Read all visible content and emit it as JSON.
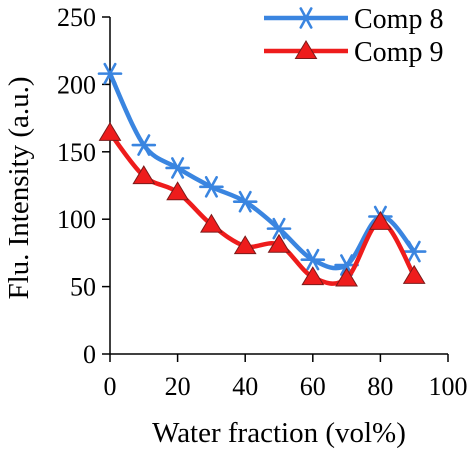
{
  "chart_data": {
    "type": "line",
    "title": "",
    "xlabel": "Water fraction (vol%)",
    "ylabel": "Flu. Intensity (a.u.)",
    "xlim": [
      0,
      100
    ],
    "ylim": [
      0,
      250
    ],
    "xticks": [
      0,
      20,
      40,
      60,
      80,
      100
    ],
    "yticks": [
      0,
      50,
      100,
      150,
      200,
      250
    ],
    "legend_position": "top-right",
    "grid": false,
    "smooth": true,
    "series": [
      {
        "name": "Comp 8",
        "color": "#3a85e0",
        "marker": "asterisk",
        "x": [
          0,
          10,
          20,
          30,
          40,
          50,
          60,
          70,
          80,
          90
        ],
        "y": [
          208,
          155,
          138,
          124,
          113,
          93,
          70,
          66,
          102,
          76
        ]
      },
      {
        "name": "Comp 9",
        "color": "#ee1c1c",
        "marker": "triangle",
        "x": [
          0,
          10,
          20,
          30,
          40,
          50,
          60,
          70,
          80,
          90
        ],
        "y": [
          164,
          132,
          120,
          96,
          80,
          81,
          57,
          56,
          98,
          58
        ]
      }
    ]
  }
}
